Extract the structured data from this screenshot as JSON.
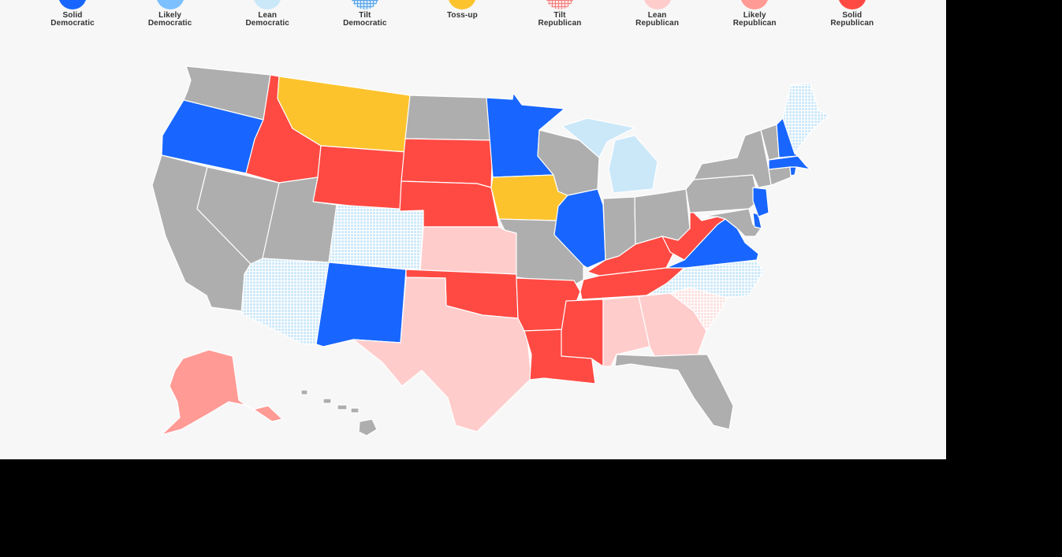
{
  "legend": [
    {
      "line1": "Solid",
      "line2": "Democratic",
      "color": "#1866ff",
      "pattern": false
    },
    {
      "line1": "Likely",
      "line2": "Democratic",
      "color": "#7cc0ff",
      "pattern": false
    },
    {
      "line1": "Lean",
      "line2": "Democratic",
      "color": "#cbe8f9",
      "pattern": false
    },
    {
      "line1": "Tilt",
      "line2": "Democratic",
      "color": "#cbe8f9",
      "pattern": true,
      "pattern_color": "#5aa2e8"
    },
    {
      "line1": "Toss-up",
      "line2": "",
      "color": "#fcc32d",
      "pattern": false
    },
    {
      "line1": "Tilt",
      "line2": "Republican",
      "color": "#fde0df",
      "pattern": true,
      "pattern_color": "#f08080"
    },
    {
      "line1": "Lean",
      "line2": "Republican",
      "color": "#ffcccc",
      "pattern": false
    },
    {
      "line1": "Likely",
      "line2": "Republican",
      "color": "#ff9a95",
      "pattern": false
    },
    {
      "line1": "Solid",
      "line2": "Republican",
      "color": "#ff4a43",
      "pattern": false
    }
  ],
  "category_colors": {
    "solid_dem": "#1866ff",
    "lean_dem": "#cbe8f9",
    "tilt_dem": "#cbe8f9",
    "tossup": "#fcc32d",
    "tilt_rep": "#fde0df",
    "lean_rep": "#ffcccc",
    "likely_rep": "#ff9a95",
    "solid_rep": "#ff4a43",
    "no_race": "#aeaeae"
  },
  "states": {
    "WA": "no_race",
    "OR": "solid_dem",
    "CA": "no_race",
    "NV": "no_race",
    "ID": "solid_rep",
    "MT": "tossup",
    "WY": "solid_rep",
    "UT": "no_race",
    "AZ": "tilt_dem",
    "CO": "tilt_dem",
    "NM": "solid_dem",
    "ND": "no_race",
    "SD": "solid_rep",
    "NE": "solid_rep",
    "KS": "lean_rep",
    "OK": "solid_rep",
    "TX": "lean_rep",
    "MN": "solid_dem",
    "IA": "tossup",
    "MO": "no_race",
    "AR": "solid_rep",
    "LA": "solid_rep",
    "WI": "no_race",
    "MI": "lean_dem",
    "IL": "solid_dem",
    "IN": "no_race",
    "OH": "no_race",
    "KY": "solid_rep",
    "TN": "solid_rep",
    "MS": "solid_rep",
    "AL": "lean_rep",
    "GA": "lean_rep",
    "FL": "no_race",
    "SC": "tilt_rep",
    "NC": "tilt_dem",
    "VA": "solid_dem",
    "WV": "solid_rep",
    "PA": "no_race",
    "NY": "no_race",
    "VT": "no_race",
    "NH": "solid_dem",
    "ME": "tilt_dem",
    "MA": "solid_dem",
    "RI": "solid_dem",
    "CT": "no_race",
    "NJ": "solid_dem",
    "DE": "solid_dem",
    "MD": "no_race",
    "AK": "likely_rep",
    "HI": "no_race"
  }
}
